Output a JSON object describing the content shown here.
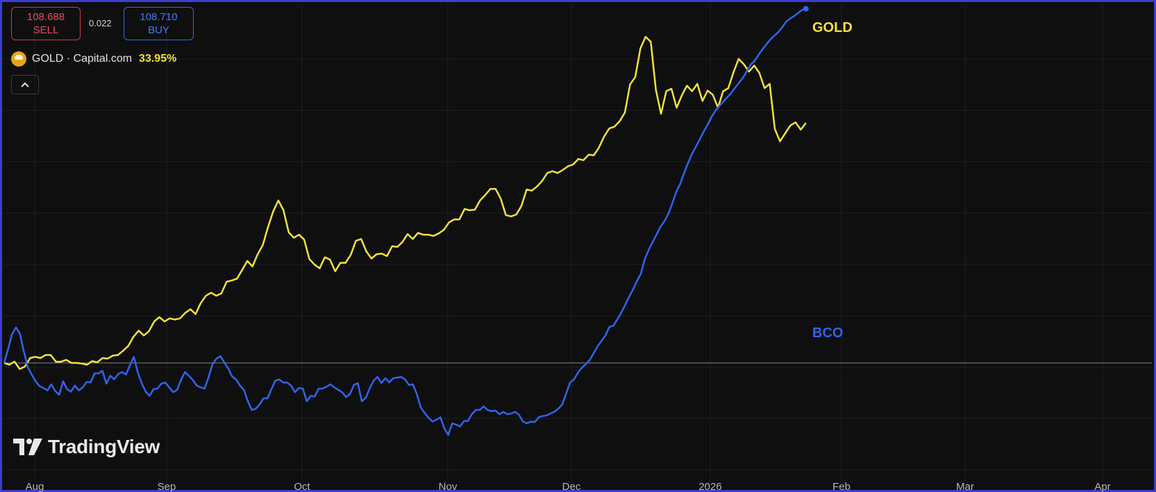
{
  "quote": {
    "sell_price": "108.688",
    "sell_label": "SELL",
    "spread": "0.022",
    "buy_price": "108.710",
    "buy_label": "BUY"
  },
  "legend": {
    "symbol_line": "GOLD · Capital.com",
    "change_pct": "33.95%",
    "collapse_glyph": "^"
  },
  "brand": {
    "name": "TradingView"
  },
  "colors": {
    "background": "#0f0f10",
    "gold": "#f5e33a",
    "bco": "#2f65ee",
    "grid": "#1f1f22",
    "baseline": "#8a8a8a",
    "sell": "#ef4a5a",
    "buy": "#3b7bff"
  },
  "chart_data": {
    "type": "line",
    "title": "",
    "x_ticks": [
      "Aug",
      "Sep",
      "Oct",
      "Nov",
      "Dec",
      "2026",
      "Feb",
      "Mar",
      "Apr"
    ],
    "series": [
      {
        "name": "GOLD",
        "color": "#f5e33a",
        "x_start_day": 0,
        "step_days": 1,
        "values": [
          0.0,
          -0.3,
          0.2,
          -1.0,
          -0.6,
          0.8,
          1.0,
          0.8,
          1.3,
          1.3,
          0.2,
          0.2,
          0.5,
          0.0,
          0.0,
          -0.1,
          -0.3,
          0.3,
          0.1,
          0.8,
          0.7,
          1.2,
          1.3,
          2.0,
          2.8,
          4.3,
          5.3,
          4.5,
          5.2,
          6.8,
          7.5,
          6.8,
          7.3,
          7.1,
          7.3,
          8.2,
          8.8,
          8.0,
          9.8,
          11.0,
          11.5,
          11.0,
          11.4,
          13.3,
          13.5,
          13.8,
          15.2,
          16.7,
          15.8,
          17.8,
          19.3,
          22.2,
          24.8,
          26.6,
          25.0,
          21.4,
          20.5,
          21.0,
          20.2,
          17.0,
          16.1,
          15.5,
          17.3,
          16.9,
          15.0,
          16.4,
          16.4,
          17.7,
          20.0,
          20.3,
          18.3,
          17.1,
          17.8,
          17.9,
          17.5,
          19.1,
          19.0,
          19.8,
          21.1,
          20.3,
          21.3,
          21.0,
          21.0,
          20.8,
          21.2,
          21.8,
          23.0,
          23.5,
          23.5,
          25.2,
          25.0,
          25.1,
          26.6,
          27.5,
          28.5,
          28.5,
          26.9,
          24.2,
          24.0,
          24.3,
          25.7,
          28.4,
          28.2,
          28.9,
          29.8,
          31.1,
          31.4,
          31.1,
          31.6,
          32.2,
          32.5,
          33.4,
          33.2,
          34.1,
          34.0,
          35.3,
          37.1,
          38.4,
          38.7,
          39.6,
          41.0,
          45.6,
          46.8,
          51.5,
          53.4,
          52.6,
          44.7,
          40.8,
          44.5,
          44.9,
          41.8,
          43.8,
          45.4,
          44.5,
          45.7,
          42.9,
          44.6,
          43.9,
          41.8,
          44.5,
          45.0,
          47.6,
          49.8,
          48.9,
          47.7,
          48.7,
          47.5,
          45.0,
          45.7,
          38.3,
          36.3,
          37.6,
          38.9,
          39.4,
          38.2,
          39.3
        ]
      },
      {
        "name": "BCO",
        "color": "#2f65ee",
        "x_start_day": 0,
        "step_days": 1,
        "values": [
          0.0,
          2.3,
          4.7,
          5.8,
          4.8,
          1.9,
          -0.7,
          -1.9,
          -3.0,
          -3.8,
          -4.1,
          -4.5,
          -3.5,
          -4.6,
          -5.2,
          -3.0,
          -4.3,
          -4.7,
          -3.7,
          -4.5,
          -4.0,
          -3.1,
          -3.2,
          -1.7,
          -1.7,
          -1.3,
          -3.4,
          -2.1,
          -2.7,
          -1.8,
          -1.5,
          -1.9,
          -0.4,
          1.0,
          -1.6,
          -3.3,
          -4.7,
          -5.4,
          -4.3,
          -4.2,
          -3.4,
          -3.2,
          -4.0,
          -4.8,
          -4.4,
          -2.8,
          -1.5,
          -2.1,
          -2.8,
          -3.7,
          -4.0,
          -4.2,
          -2.4,
          -0.2,
          0.7,
          1.1,
          0.1,
          -0.9,
          -2.2,
          -2.7,
          -3.7,
          -4.4,
          -6.3,
          -7.7,
          -7.5,
          -6.8,
          -5.8,
          -5.8,
          -4.3,
          -2.9,
          -2.7,
          -3.2,
          -3.2,
          -3.7,
          -4.8,
          -4.1,
          -4.2,
          -6.3,
          -5.4,
          -5.5,
          -4.2,
          -4.2,
          -3.9,
          -3.5,
          -4.0,
          -4.4,
          -4.8,
          -5.6,
          -5.1,
          -3.6,
          -3.3,
          -6.3,
          -5.7,
          -4.2,
          -2.9,
          -2.3,
          -3.3,
          -2.5,
          -3.2,
          -2.5,
          -2.4,
          -2.3,
          -2.7,
          -3.6,
          -3.5,
          -5.1,
          -7.3,
          -8.2,
          -9.0,
          -9.6,
          -9.3,
          -8.9,
          -10.7,
          -11.8,
          -9.9,
          -10.1,
          -10.4,
          -9.5,
          -9.5,
          -8.4,
          -7.7,
          -7.7,
          -7.1,
          -7.7,
          -7.9,
          -7.8,
          -8.4,
          -8.0,
          -8.4,
          -8.3,
          -8.0,
          -8.5,
          -9.6,
          -9.9,
          -9.6,
          -9.7,
          -8.9,
          -8.7,
          -8.6,
          -8.3,
          -8.0,
          -7.5,
          -6.8,
          -5.0,
          -3.2,
          -2.7,
          -1.6,
          -0.8,
          -0.2,
          0.5,
          1.6,
          2.7,
          3.6,
          4.5,
          5.9,
          6.1,
          7.1,
          8.2,
          9.5,
          10.8,
          12.0,
          13.4,
          14.6,
          17.0,
          18.5,
          19.8,
          21.0,
          22.3,
          23.2,
          24.4,
          26.1,
          28.0,
          29.3,
          31.1,
          32.7,
          34.2,
          35.4,
          36.6,
          37.9,
          39.0,
          40.3,
          41.3,
          42.1,
          42.8,
          43.5,
          44.2,
          45.1,
          45.9,
          46.7,
          47.8,
          48.9,
          49.5,
          50.5,
          51.4,
          52.2,
          53.0,
          53.6,
          54.2,
          55.0,
          55.9,
          56.4,
          56.8,
          57.3,
          57.8,
          58.0
        ]
      }
    ],
    "baseline_value": 0,
    "grid": true
  }
}
